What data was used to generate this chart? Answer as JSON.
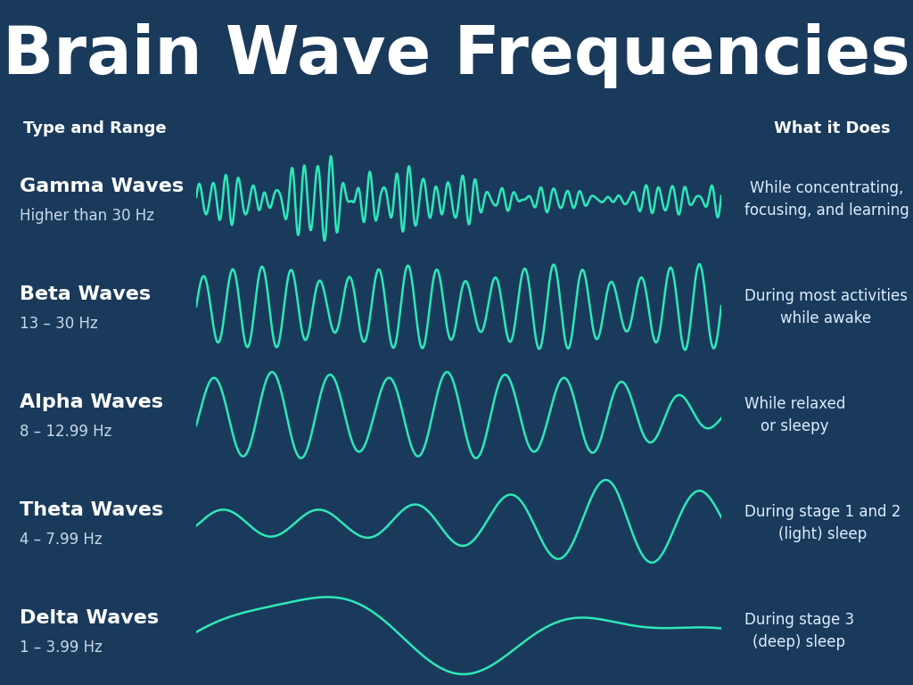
{
  "title": "Brain Wave Frequencies",
  "bg_header": "#1a3a5c",
  "bg_col_header": "#2a4a6c",
  "row_bg_colors": [
    "#6b7f9e",
    "#4a6080",
    "#6b7f9e",
    "#2a4060",
    "#1a3050"
  ],
  "wave_color": "#2de8b8",
  "wave_linewidth": 1.8,
  "title_fontsize": 54,
  "header_fontsize": 13,
  "name_fontsize": 16,
  "range_fontsize": 12,
  "desc_fontsize": 12,
  "rows": [
    {
      "name": "Gamma Waves",
      "range": "Higher than 30 Hz",
      "description": "While concentrating,\nfocusing, and learning",
      "type": "gamma"
    },
    {
      "name": "Beta Waves",
      "range": "13 – 30 Hz",
      "description": "During most activities\nwhile awake",
      "type": "beta"
    },
    {
      "name": "Alpha Waves",
      "range": "8 – 12.99 Hz",
      "description": "While relaxed\nor sleepy",
      "type": "alpha"
    },
    {
      "name": "Theta Waves",
      "range": "4 – 7.99 Hz",
      "description": "During stage 1 and 2\n(light) sleep",
      "type": "theta"
    },
    {
      "name": "Delta Waves",
      "range": "1 – 3.99 Hz",
      "description": "During stage 3\n(deep) sleep",
      "type": "delta"
    }
  ]
}
